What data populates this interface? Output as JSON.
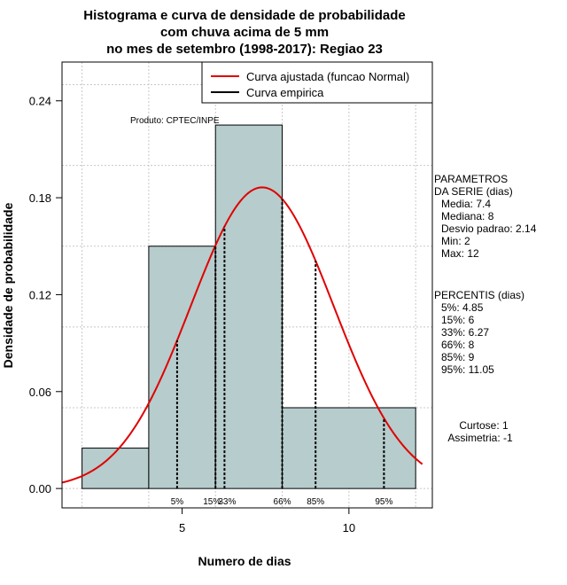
{
  "chart_data": {
    "type": "bar",
    "title_lines": [
      "Histograma e curva de densidade de probabilidade",
      "com chuva acima de 5 mm",
      "no mes de setembro (1998-2017): Regiao 23"
    ],
    "xlabel": "Numero de dias",
    "ylabel": "Densidade de probabilidade",
    "xlim": [
      1.4,
      12.5
    ],
    "ylim": [
      -0.012,
      0.264
    ],
    "x_ticks": [
      5,
      10
    ],
    "y_ticks": [
      0.0,
      0.06,
      0.12,
      0.18,
      0.24
    ],
    "y_tick_labels": [
      "0.00",
      "0.06",
      "0.12",
      "0.18",
      "0.24"
    ],
    "grid": true,
    "bins": [
      {
        "x0": 2,
        "x1": 4,
        "density": 0.025
      },
      {
        "x0": 4,
        "x1": 6,
        "density": 0.15
      },
      {
        "x0": 6,
        "x1": 8,
        "density": 0.225
      },
      {
        "x0": 8,
        "x1": 12,
        "density": 0.05
      }
    ],
    "bar_color": "#b7cccc",
    "normal_curve": {
      "mean": 7.4,
      "sd": 2.14,
      "color": "#e00000"
    },
    "percentiles": [
      {
        "label": "5%",
        "x": 4.85
      },
      {
        "label": "15%",
        "x": 6
      },
      {
        "label": "33%",
        "x": 6.27
      },
      {
        "label": "66%",
        "x": 8
      },
      {
        "label": "85%",
        "x": 9
      },
      {
        "label": "95%",
        "x": 11.05
      }
    ],
    "legend": {
      "position": "top-right",
      "entries": [
        {
          "label": "Curva ajustada (funcao Normal)",
          "color": "#e00000"
        },
        {
          "label": "Curva empirica",
          "color": "#000000"
        }
      ]
    },
    "annotation": "Produto: CPTEC/INPE",
    "side_panel": {
      "parametros_title": [
        "PARAMETROS",
        "DA SERIE (dias)"
      ],
      "parametros": [
        "Media: 7.4",
        "Mediana: 8",
        "Desvio padrao: 2.14",
        "Min: 2",
        "Max: 12"
      ],
      "percentis_title": "PERCENTIS (dias)",
      "percentis": [
        "5%: 4.85",
        "15%: 6",
        "33%: 6.27",
        "66%: 8",
        "85%: 9",
        "95%: 11.05"
      ],
      "curtose": "Curtose: 1",
      "assimetria": "Assimetria: -1"
    }
  }
}
